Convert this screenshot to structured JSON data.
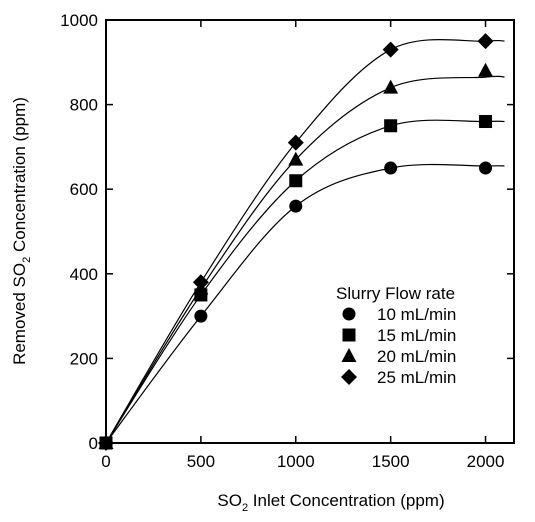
{
  "chart_data": {
    "type": "scatter",
    "title": "",
    "xlabel": {
      "prefix": "SO",
      "sub": "2",
      "suffix": " Inlet Concentration (ppm)"
    },
    "ylabel": {
      "prefix": "Removed SO",
      "sub": "2",
      "suffix": " Concentration (ppm)"
    },
    "xlim": [
      0,
      2150
    ],
    "ylim": [
      0,
      1000
    ],
    "xticks": [
      0,
      500,
      1000,
      1500,
      2000
    ],
    "yticks": [
      0,
      200,
      400,
      600,
      800,
      1000
    ],
    "xtick_labels": [
      "0",
      "500",
      "1000",
      "1500",
      "2000"
    ],
    "ytick_labels": [
      "0",
      "200",
      "400",
      "600",
      "800",
      "1000"
    ],
    "grid": false,
    "legend": {
      "title": "Slurry Flow rate",
      "placement": "lower-right"
    },
    "series": [
      {
        "name": "10 mL/min",
        "marker": "circle",
        "x": [
          0,
          500,
          1000,
          1500,
          2000
        ],
        "y": [
          0,
          300,
          560,
          650,
          650
        ],
        "fit_plateau": 655
      },
      {
        "name": "15 mL/min",
        "marker": "square",
        "x": [
          0,
          500,
          1000,
          1500,
          2000
        ],
        "y": [
          0,
          350,
          620,
          750,
          760
        ],
        "fit_plateau": 760
      },
      {
        "name": "20 mL/min",
        "marker": "triangle",
        "x": [
          0,
          500,
          1000,
          1500,
          2000
        ],
        "y": [
          0,
          365,
          670,
          840,
          880
        ],
        "fit_plateau": 865
      },
      {
        "name": "25 mL/min",
        "marker": "diamond",
        "x": [
          0,
          500,
          1000,
          1500,
          2000
        ],
        "y": [
          0,
          380,
          710,
          930,
          950
        ],
        "fit_plateau": 950
      }
    ]
  }
}
